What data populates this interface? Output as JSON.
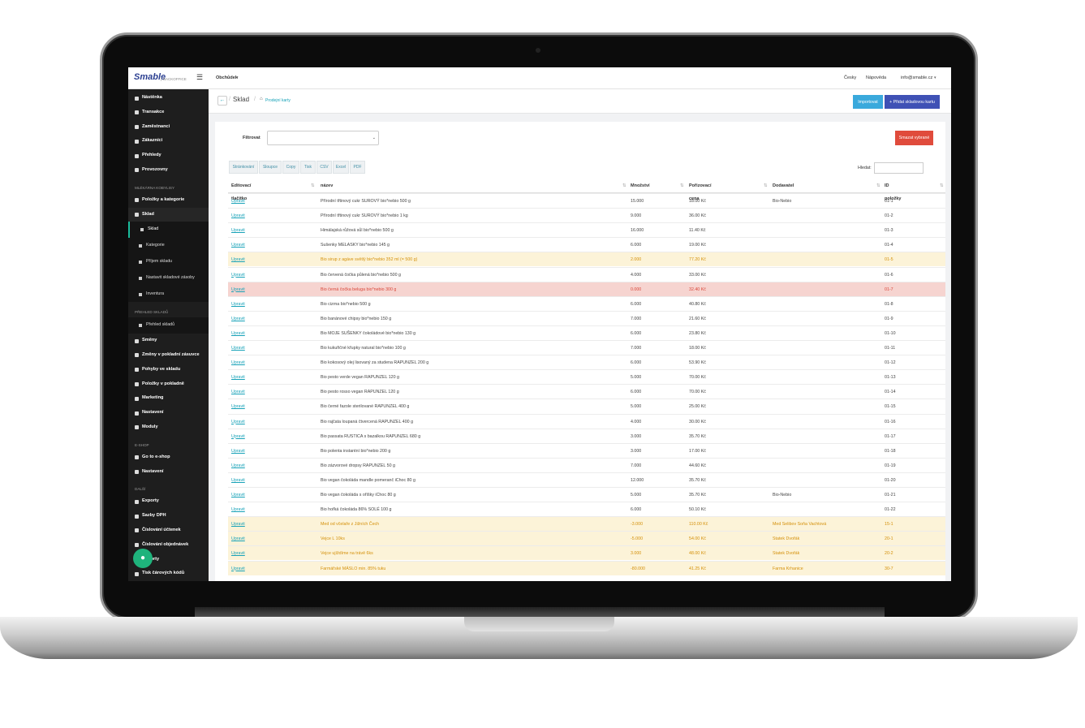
{
  "header": {
    "logo": "Smable",
    "logo_sub": "BACKOFFICE",
    "shop": "Obchůdek",
    "language": "Česky",
    "help": "Nápověda",
    "user": "info@smable.cz"
  },
  "sidebar": {
    "sections": [
      {
        "items": [
          {
            "label": "Nástěnka"
          },
          {
            "label": "Transakce"
          },
          {
            "label": "Zaměstnanci"
          },
          {
            "label": "Zákazníci"
          },
          {
            "label": "Přehledy"
          },
          {
            "label": "Provozovny"
          }
        ]
      },
      {
        "title": "MLÉKÁRNA KOBYLISY",
        "items": [
          {
            "label": "Položky a kategorie"
          },
          {
            "label": "Sklad",
            "children": [
              "Sklad",
              "Kategorie",
              "Příjem skladu",
              "Nastavit skladové zásoby",
              "Inventura"
            ]
          }
        ]
      },
      {
        "title": "PŘEHLED SKLADŮ",
        "items": [
          {
            "label": "Přehled skladů"
          }
        ]
      },
      {
        "items": [
          {
            "label": "Směny"
          },
          {
            "label": "Změny v pokladní zásuvce"
          },
          {
            "label": "Pohyby ve skladu"
          },
          {
            "label": "Položky v pokladně"
          },
          {
            "label": "Marketing"
          },
          {
            "label": "Nastavení"
          },
          {
            "label": "Moduly"
          }
        ]
      },
      {
        "title": "E-SHOP",
        "items": [
          {
            "label": "Go to e-shop"
          },
          {
            "label": "Nastavení"
          }
        ]
      },
      {
        "title": "DALŠÍ",
        "items": [
          {
            "label": "Exporty"
          },
          {
            "label": "Sazby DPH"
          },
          {
            "label": "Číslování účtenek"
          },
          {
            "label": "Číslování objednávek"
          },
          {
            "label": "Reporty"
          },
          {
            "label": "Tisk čárových kódů"
          }
        ]
      }
    ]
  },
  "breadcrumb": {
    "title": "Sklad",
    "path": "Prodejní karty"
  },
  "actions": {
    "import": "Importovat",
    "add": "+ Přidat skladovou kartu",
    "delete": "Smazat vybrané"
  },
  "filter": {
    "label": "Filtrovat"
  },
  "toolbar": [
    "Stránkování",
    "Sloupce",
    "Copy",
    "Tisk",
    "CSV",
    "Excel",
    "PDF"
  ],
  "search": {
    "label": "Hledat:"
  },
  "table": {
    "columns": [
      "Editovací tlačítko",
      "název",
      "Množství",
      "Pořizovací cena",
      "Dodavatel",
      "ID položky"
    ],
    "rows": [
      [
        "Upravit",
        "Přírodní třtinový cukr SUROVÝ bio*nebio 500 g",
        "15.000",
        "18.00 Kč",
        "Bio-Nebio",
        "01-1"
      ],
      [
        "Upravit",
        "Přírodní třtinový cukr SUROVÝ bio*nebio 1 kg",
        "9.000",
        "36.00 Kč",
        "",
        "01-2"
      ],
      [
        "Upravit",
        "Himálajská růžová sůl bio*nebio 500 g",
        "16.000",
        "11.40 Kč",
        "",
        "01-3"
      ],
      [
        "Upravit",
        "Sušenky MELASKY bio*nebio 145 g",
        "6.000",
        "19.00 Kč",
        "",
        "01-4"
      ],
      [
        "Upravit",
        "Bio sirup z agáve světlý bio*nebio 352 ml (= 500 g)",
        "2.000",
        "77.20 Kč",
        "",
        "01-5"
      ],
      [
        "Upravit",
        "Bio červená čočka půlená bio*nebio 500 g",
        "4.000",
        "33.00 Kč",
        "",
        "01-6"
      ],
      [
        "Upravit",
        "Bio černá čočka beluga bio*nebio 300 g",
        "0.000",
        "32.40 Kč",
        "",
        "01-7"
      ],
      [
        "Upravit",
        "Bio cizrna bio*nebio 500 g",
        "6.000",
        "40.80 Kč",
        "",
        "01-8"
      ],
      [
        "Upravit",
        "Bio banánové chipsy bio*nebio 150 g",
        "7.000",
        "21.60 Kč",
        "",
        "01-9"
      ],
      [
        "Upravit",
        "Bio MOJE SUŠENKY čokoládové bio*nebio 130 g",
        "6.000",
        "23.80 Kč",
        "",
        "01-10"
      ],
      [
        "Upravit",
        "Bio kukuřičné křupky natural bio*nebio 100 g",
        "7.000",
        "18.00 Kč",
        "",
        "01-11"
      ],
      [
        "Upravit",
        "Bio kokosový olej lisovaný za studena RAPUNZEL 200 g",
        "6.000",
        "53.90 Kč",
        "",
        "01-12"
      ],
      [
        "Upravit",
        "Bio pesto verde vegan RAPUNZEL 120 g",
        "5.000",
        "70.00 Kč",
        "",
        "01-13"
      ],
      [
        "Upravit",
        "Bio pesto rosso vegan RAPUNZEL 120 g",
        "6.000",
        "70.00 Kč",
        "",
        "01-14"
      ],
      [
        "Upravit",
        "Bio černé fazole sterilované RAPUNZEL 400 g",
        "5.000",
        "25.00 Kč",
        "",
        "01-15"
      ],
      [
        "Upravit",
        "Bio rajčata loupaná čtvercená RAPUNZEL 400 g",
        "4.000",
        "30.00 Kč",
        "",
        "01-16"
      ],
      [
        "Upravit",
        "Bio passata RUSTICA s bazalkou RAPUNZEL 680 g",
        "3.000",
        "35.70 Kč",
        "",
        "01-17"
      ],
      [
        "Upravit",
        "Bio polenta instantní bio*nebio 200 g",
        "3.000",
        "17.00 Kč",
        "",
        "01-18"
      ],
      [
        "Upravit",
        "Bio zázvorové dropsy RAPUNZEL 50 g",
        "7.000",
        "44.60 Kč",
        "",
        "01-19"
      ],
      [
        "Upravit",
        "Bio vegan čokoláda mandle pomeranč iChoc 80 g",
        "12.000",
        "35.70 Kč",
        "",
        "01-20"
      ],
      [
        "Upravit",
        "Bio vegan čokoláda s oříšky iChoc 80 g",
        "5.000",
        "35.70 Kč",
        "Bio-Nebio",
        "01-21"
      ],
      [
        "Upravit",
        "Bio hořká čokoláda 86% SOLÉ 100 g",
        "6.000",
        "50.10 Kč",
        "",
        "01-22"
      ],
      [
        "Upravit",
        "Med od včelaře z Jižních Čech",
        "-3.000",
        "110.00 Kč",
        "Med Selibov Soňa Vachtová",
        "15-1"
      ],
      [
        "Upravit",
        "Vejce L 10ks",
        "-5.000",
        "54.00 Kč",
        "Statek Dvořák",
        "20-1"
      ],
      [
        "Upravit",
        "Vejce ujíždíme na trávě 6ks",
        "3.000",
        "48.00 Kč",
        "Statek Dvořák",
        "20-2"
      ],
      [
        "Upravit",
        "Farmářské MÁSLO min. 85% tuku",
        "-80.000",
        "41.25 Kč",
        "Farma Krhanice",
        "30-7"
      ]
    ],
    "row_styles": [
      null,
      null,
      null,
      null,
      {
        "background": "#fcf3d8",
        "color": "#d4900a"
      },
      null,
      {
        "background": "#f6d4d0",
        "color": "#d9473a"
      },
      null,
      null,
      null,
      null,
      null,
      null,
      null,
      null,
      null,
      null,
      null,
      null,
      null,
      null,
      null,
      {
        "background": "#fcf3d8",
        "color": "#d4900a"
      },
      {
        "background": "#fcf3d8",
        "color": "#d4900a"
      },
      {
        "background": "#fcf3d8",
        "color": "#d4900a"
      },
      {
        "background": "#fcf3d8",
        "color": "#d4900a"
      }
    ]
  }
}
